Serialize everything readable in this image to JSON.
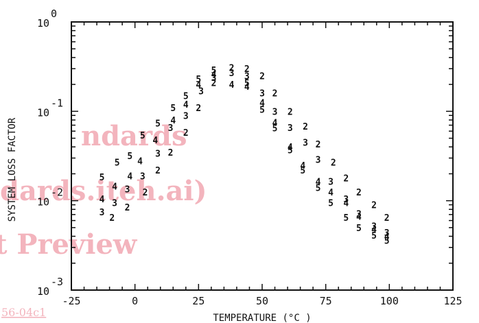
{
  "watermark": {
    "lines": [
      "ndards",
      "dards.iteh.ai)",
      "t Preview"
    ],
    "footer": "56-04c1",
    "color": "#f3b4bd"
  },
  "chart_data": {
    "type": "scatter",
    "title": "",
    "xlabel": "TEMPERATURE  (°C )",
    "ylabel": "SYSTEM LOSS FACTOR",
    "xlim": [
      -25,
      125
    ],
    "ylim": [
      0.001,
      1
    ],
    "yscale": "log",
    "x_ticks": [
      "-25",
      "0",
      "25",
      "50",
      "75",
      "100",
      "125"
    ],
    "y_ticks": [
      {
        "base": "10",
        "exp": "0"
      },
      {
        "base": "10",
        "exp": "-1"
      },
      {
        "base": "10",
        "exp": "-2"
      },
      {
        "base": "10",
        "exp": "-3"
      }
    ],
    "marker_type": "text-digit",
    "series": [
      {
        "marker": "2",
        "points": [
          {
            "x": -9,
            "y": 0.0065
          },
          {
            "x": -3,
            "y": 0.0085
          },
          {
            "x": 4,
            "y": 0.0125
          },
          {
            "x": 9,
            "y": 0.022
          },
          {
            "x": 14,
            "y": 0.035
          },
          {
            "x": 20,
            "y": 0.058
          },
          {
            "x": 25,
            "y": 0.11
          },
          {
            "x": 31,
            "y": 0.21
          },
          {
            "x": 38,
            "y": 0.31
          },
          {
            "x": 44,
            "y": 0.3
          },
          {
            "x": 50,
            "y": 0.25
          },
          {
            "x": 55,
            "y": 0.16
          },
          {
            "x": 61,
            "y": 0.1
          },
          {
            "x": 67,
            "y": 0.068
          },
          {
            "x": 72,
            "y": 0.043
          },
          {
            "x": 78,
            "y": 0.027
          },
          {
            "x": 83,
            "y": 0.018
          },
          {
            "x": 88,
            "y": 0.0125
          },
          {
            "x": 94,
            "y": 0.009
          },
          {
            "x": 99,
            "y": 0.0065
          }
        ]
      },
      {
        "marker": "3",
        "points": [
          {
            "x": -13,
            "y": 0.0075
          },
          {
            "x": -8,
            "y": 0.0095
          },
          {
            "x": -3,
            "y": 0.0135
          },
          {
            "x": 3,
            "y": 0.019
          },
          {
            "x": 9,
            "y": 0.034
          },
          {
            "x": 14,
            "y": 0.066
          },
          {
            "x": 20,
            "y": 0.09
          },
          {
            "x": 26,
            "y": 0.17
          },
          {
            "x": 31,
            "y": 0.24
          },
          {
            "x": 38,
            "y": 0.27
          },
          {
            "x": 44,
            "y": 0.25
          },
          {
            "x": 50,
            "y": 0.16
          },
          {
            "x": 55,
            "y": 0.1
          },
          {
            "x": 61,
            "y": 0.066
          },
          {
            "x": 67,
            "y": 0.045
          },
          {
            "x": 72,
            "y": 0.029
          },
          {
            "x": 77,
            "y": 0.0165
          },
          {
            "x": 83,
            "y": 0.0105
          },
          {
            "x": 88,
            "y": 0.0072
          },
          {
            "x": 94,
            "y": 0.0052
          },
          {
            "x": 99,
            "y": 0.0044
          }
        ]
      },
      {
        "marker": "4",
        "points": [
          {
            "x": -13,
            "y": 0.0105
          },
          {
            "x": -8,
            "y": 0.0145
          },
          {
            "x": -2,
            "y": 0.019
          },
          {
            "x": 2,
            "y": 0.028
          },
          {
            "x": 8,
            "y": 0.048
          },
          {
            "x": 15,
            "y": 0.08
          },
          {
            "x": 20,
            "y": 0.12
          },
          {
            "x": 25,
            "y": 0.2
          },
          {
            "x": 31,
            "y": 0.26
          },
          {
            "x": 38,
            "y": 0.2
          },
          {
            "x": 44,
            "y": 0.19
          },
          {
            "x": 50,
            "y": 0.125
          },
          {
            "x": 55,
            "y": 0.075
          },
          {
            "x": 61,
            "y": 0.04
          },
          {
            "x": 66,
            "y": 0.025
          },
          {
            "x": 72,
            "y": 0.0165
          },
          {
            "x": 77,
            "y": 0.0125
          },
          {
            "x": 83,
            "y": 0.0095
          },
          {
            "x": 88,
            "y": 0.0067
          },
          {
            "x": 94,
            "y": 0.0048
          },
          {
            "x": 99,
            "y": 0.004
          }
        ]
      },
      {
        "marker": "5",
        "points": [
          {
            "x": -13,
            "y": 0.0185
          },
          {
            "x": -7,
            "y": 0.027
          },
          {
            "x": -2,
            "y": 0.032
          },
          {
            "x": 3,
            "y": 0.054
          },
          {
            "x": 9,
            "y": 0.074
          },
          {
            "x": 15,
            "y": 0.11
          },
          {
            "x": 20,
            "y": 0.15
          },
          {
            "x": 25,
            "y": 0.23
          },
          {
            "x": 31,
            "y": 0.29
          },
          {
            "x": 44,
            "y": 0.21
          },
          {
            "x": 50,
            "y": 0.105
          },
          {
            "x": 55,
            "y": 0.065
          },
          {
            "x": 61,
            "y": 0.037
          },
          {
            "x": 66,
            "y": 0.022
          },
          {
            "x": 72,
            "y": 0.014
          },
          {
            "x": 77,
            "y": 0.0095
          },
          {
            "x": 83,
            "y": 0.0065
          },
          {
            "x": 88,
            "y": 0.005
          },
          {
            "x": 94,
            "y": 0.0041
          },
          {
            "x": 99,
            "y": 0.0036
          }
        ]
      }
    ]
  }
}
